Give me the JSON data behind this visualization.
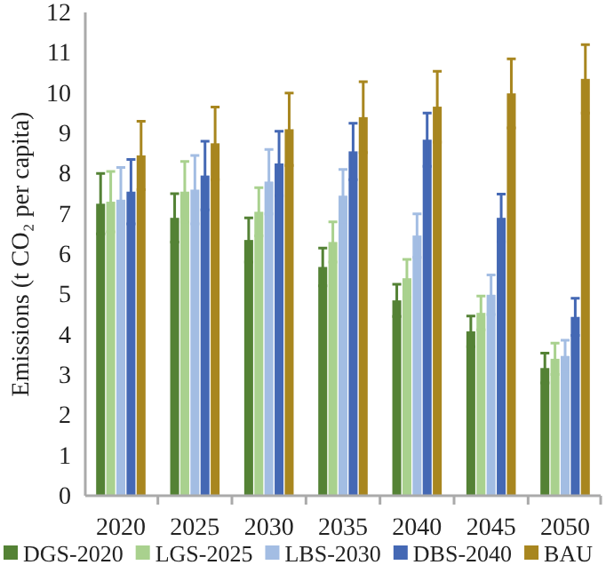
{
  "chart_data": {
    "type": "bar",
    "ylabel": "Emissions (t CO₂ per capita)",
    "categories": [
      "2020",
      "2025",
      "2030",
      "2035",
      "2040",
      "2045",
      "2050"
    ],
    "series": [
      {
        "name": "DGS-2020",
        "color": "#548235",
        "values": [
          7.25,
          6.9,
          6.35,
          5.68,
          4.85,
          4.08,
          3.17
        ],
        "errors": [
          0.75,
          0.6,
          0.55,
          0.47,
          0.4,
          0.38,
          0.37
        ]
      },
      {
        "name": "LGS-2025",
        "color": "#a9d18e",
        "values": [
          7.3,
          7.55,
          7.05,
          6.3,
          5.4,
          4.54,
          3.4
        ],
        "errors": [
          0.75,
          0.75,
          0.6,
          0.5,
          0.47,
          0.42,
          0.39
        ]
      },
      {
        "name": "LBS-2030",
        "color": "#a3bde3",
        "values": [
          7.35,
          7.6,
          7.8,
          7.45,
          6.46,
          4.99,
          3.47
        ],
        "errors": [
          0.8,
          0.85,
          0.8,
          0.65,
          0.54,
          0.49,
          0.39
        ]
      },
      {
        "name": "DBS-2040",
        "color": "#4468b4",
        "values": [
          7.55,
          7.95,
          8.25,
          8.55,
          8.84,
          6.9,
          4.44
        ],
        "errors": [
          0.8,
          0.85,
          0.8,
          0.7,
          0.66,
          0.59,
          0.46
        ]
      },
      {
        "name": "BAU",
        "color": "#a8861f",
        "values": [
          8.45,
          8.75,
          9.1,
          9.4,
          9.66,
          9.99,
          10.35
        ],
        "errors": [
          0.85,
          0.9,
          0.9,
          0.88,
          0.88,
          0.86,
          0.85
        ]
      }
    ],
    "ylim": [
      0,
      12
    ],
    "yticks": [
      0,
      1,
      2,
      3,
      4,
      5,
      6,
      7,
      8,
      9,
      10,
      11,
      12
    ],
    "grid": false,
    "legend": "bottom"
  }
}
